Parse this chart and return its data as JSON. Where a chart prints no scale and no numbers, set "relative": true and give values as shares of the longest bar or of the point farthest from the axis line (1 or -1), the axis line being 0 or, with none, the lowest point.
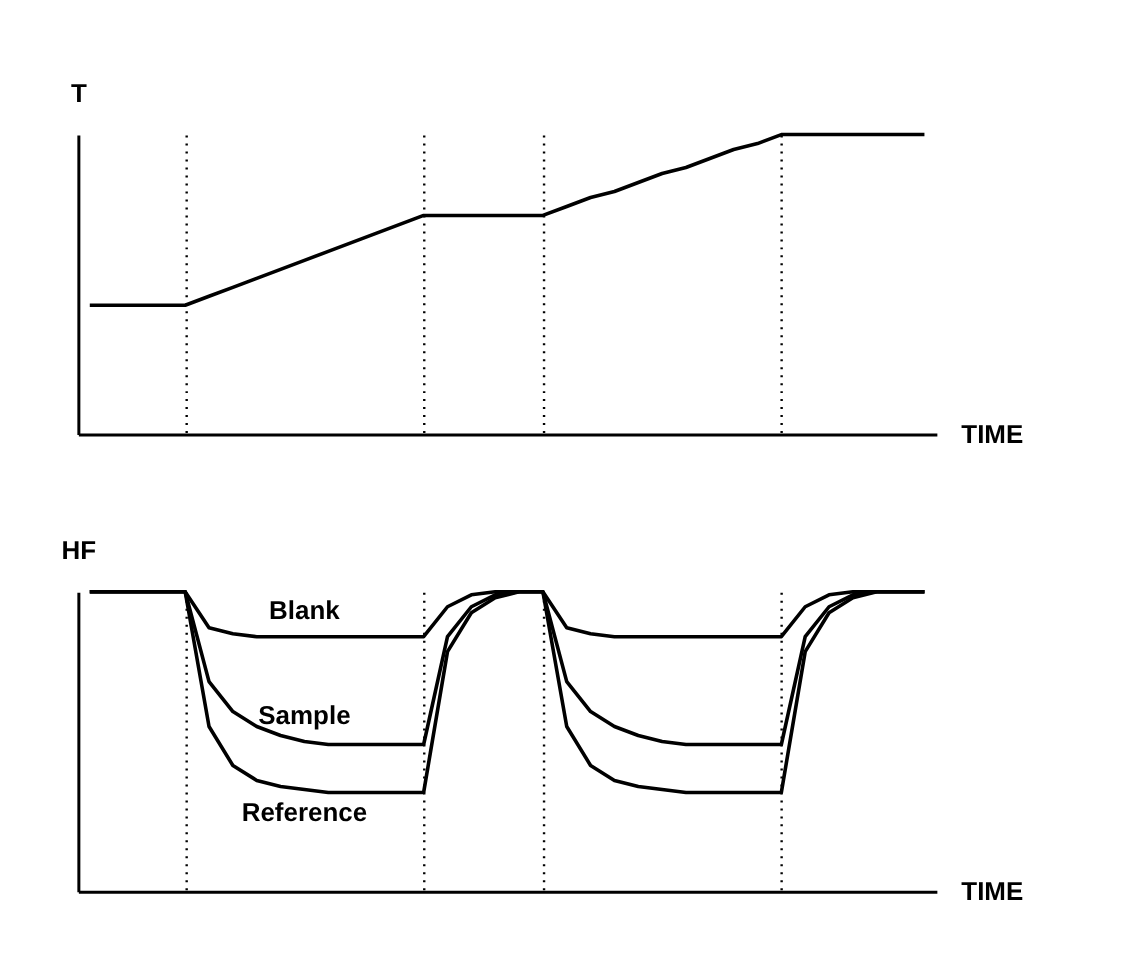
{
  "chart_data": [
    {
      "type": "line",
      "relative": true,
      "ylabel": "T",
      "xlabel": "TIME",
      "tick_labels": false,
      "grid": "x",
      "legend": false,
      "marker": "none",
      "line_style": "solid",
      "categories": [
        null,
        null,
        null,
        null,
        null,
        null,
        null,
        null,
        null,
        null,
        null,
        null,
        null,
        null,
        null,
        null,
        null,
        null,
        null,
        null,
        null,
        null,
        null,
        null,
        null,
        null,
        null,
        null,
        null,
        null,
        null,
        null,
        null,
        null,
        null,
        null
      ],
      "series": [
        {
          "color": "#000000",
          "values": [
            0.43,
            0.43,
            0.43,
            0.43,
            0.43,
            0.46,
            0.49,
            0.52,
            0.55,
            0.58,
            0.61,
            0.64,
            0.67,
            0.7,
            0.73,
            0.73,
            0.73,
            0.73,
            0.73,
            0.73,
            0.76,
            0.79,
            0.81,
            0.84,
            0.87,
            0.89,
            0.92,
            0.95,
            0.97,
            1.0,
            1.0,
            1.0,
            1.0,
            1.0,
            1.0,
            1.0
          ]
        }
      ]
    },
    {
      "type": "line",
      "relative": true,
      "ylabel": "HF",
      "xlabel": "TIME",
      "tick_labels": false,
      "grid": "x",
      "legend": false,
      "marker": "none",
      "line_style": "solid",
      "categories": [
        null,
        null,
        null,
        null,
        null,
        null,
        null,
        null,
        null,
        null,
        null,
        null,
        null,
        null,
        null,
        null,
        null,
        null,
        null,
        null,
        null,
        null,
        null,
        null,
        null,
        null,
        null,
        null,
        null,
        null,
        null,
        null,
        null,
        null,
        null,
        null
      ],
      "series": [
        {
          "name": "Blank",
          "color": "#000000",
          "values": [
            1,
            1,
            1,
            1,
            1,
            0.88,
            0.86,
            0.85,
            0.85,
            0.85,
            0.85,
            0.85,
            0.85,
            0.85,
            0.85,
            0.95,
            0.99,
            1,
            1,
            1,
            0.88,
            0.86,
            0.85,
            0.85,
            0.85,
            0.85,
            0.85,
            0.85,
            0.85,
            0.85,
            0.95,
            0.99,
            1,
            1,
            1,
            1
          ]
        },
        {
          "name": "Sample",
          "color": "#000000",
          "values": [
            1,
            1,
            1,
            1,
            1,
            0.7,
            0.6,
            0.55,
            0.52,
            0.5,
            0.49,
            0.49,
            0.49,
            0.49,
            0.49,
            0.85,
            0.95,
            0.99,
            1,
            1,
            0.7,
            0.6,
            0.55,
            0.52,
            0.5,
            0.49,
            0.49,
            0.49,
            0.49,
            0.49,
            0.85,
            0.95,
            0.99,
            1,
            1,
            1
          ]
        },
        {
          "name": "Reference",
          "color": "#000000",
          "values": [
            1,
            1,
            1,
            1,
            1,
            0.55,
            0.42,
            0.37,
            0.35,
            0.34,
            0.33,
            0.33,
            0.33,
            0.33,
            0.33,
            0.8,
            0.93,
            0.98,
            1,
            1,
            0.55,
            0.42,
            0.37,
            0.35,
            0.34,
            0.33,
            0.33,
            0.33,
            0.33,
            0.33,
            0.8,
            0.93,
            0.98,
            1,
            1,
            1
          ]
        }
      ]
    }
  ]
}
